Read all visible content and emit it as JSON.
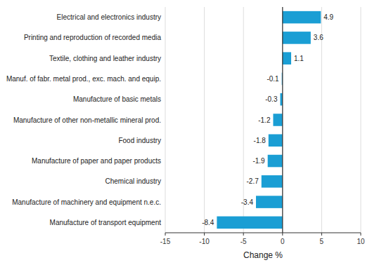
{
  "chart_data": {
    "type": "bar",
    "orientation": "horizontal",
    "categories": [
      "Manufacture of transport equipment",
      "Manufacture of machinery and equipment n.e.c.",
      "Chemical industry",
      "Manufacture of paper and paper products",
      "Food industry",
      "Manufacture of other non-metallic mineral prod.",
      "Manufacture of basic metals",
      "Manuf. of fabr. metal prod., exc. mach. and equip.",
      "Textile, clothing and leather industry",
      "Printing and reproduction of recorded media",
      "Electrical and electronics industry"
    ],
    "values": [
      -8.4,
      -3.4,
      -2.7,
      -1.9,
      -1.8,
      -1.2,
      -0.3,
      -0.1,
      1.1,
      3.6,
      4.9
    ],
    "color": "#1a9ed4",
    "xlabel": "Change %",
    "xlim": [
      -15,
      10
    ],
    "xticks": [
      -15,
      -10,
      -5,
      0,
      5,
      10
    ],
    "grid": true,
    "data_labels": true
  }
}
